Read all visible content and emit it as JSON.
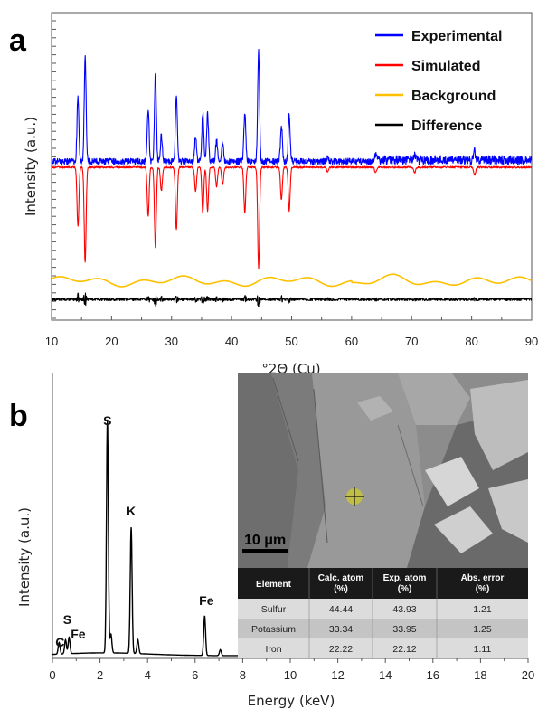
{
  "chart_data": [
    {
      "type": "line",
      "panel": "a",
      "xlabel": "°2Θ (Cu)",
      "ylabel": "Intensity (a.u.)",
      "xlim": [
        10,
        90
      ],
      "xticks": [
        "10",
        "20",
        "30",
        "40",
        "50",
        "60",
        "70",
        "80",
        "90"
      ],
      "legend_position": "top-right",
      "series": [
        {
          "name": "Experimental",
          "color": "#0000ff"
        },
        {
          "name": "Simulated",
          "color": "#ff0000"
        },
        {
          "name": "Background",
          "color": "#ffc000"
        },
        {
          "name": "Difference",
          "color": "#000000"
        }
      ],
      "peaks": {
        "x": [
          14.4,
          15.6,
          26.1,
          27.3,
          28.3,
          30.8,
          34.0,
          35.2,
          36.0,
          37.5,
          38.5,
          42.2,
          44.5,
          48.3,
          49.6,
          56.0,
          64.0,
          70.5,
          80.5
        ],
        "height": [
          0.55,
          0.88,
          0.45,
          0.74,
          0.22,
          0.58,
          0.22,
          0.42,
          0.4,
          0.18,
          0.16,
          0.42,
          0.93,
          0.3,
          0.4,
          0.04,
          0.05,
          0.05,
          0.07
        ]
      }
    },
    {
      "type": "line",
      "panel": "b",
      "xlabel": "Energy (keV)",
      "ylabel": "Intensity (a.u.)",
      "xlim": [
        0,
        20
      ],
      "xticks": [
        "0",
        "2",
        "4",
        "6",
        "8",
        "10",
        "12",
        "14",
        "16",
        "18",
        "20"
      ],
      "peaks": {
        "x": [
          0.28,
          0.55,
          0.7,
          2.31,
          2.46,
          3.31,
          3.59,
          6.4,
          7.06
        ],
        "height": [
          0.05,
          0.06,
          0.07,
          1.0,
          0.08,
          0.54,
          0.06,
          0.17,
          0.025
        ]
      },
      "annotations": [
        {
          "text": "S",
          "x": 2.31
        },
        {
          "text": "K",
          "x": 3.31
        },
        {
          "text": "Fe",
          "x": 6.4
        },
        {
          "text": "C",
          "x": 0.28
        },
        {
          "text": "S",
          "x": 0.55
        },
        {
          "text": "Fe",
          "x": 0.7
        }
      ],
      "inset": {
        "scale_bar": "10 μm",
        "table": {
          "headers": [
            "Element",
            "Calc. atom (%)",
            "Exp. atom (%)",
            "Abs. error (%)"
          ],
          "rows": [
            [
              "Sulfur",
              "44.44",
              "43.93",
              "1.21"
            ],
            [
              "Potassium",
              "33.34",
              "33.95",
              "1.25"
            ],
            [
              "Iron",
              "22.22",
              "22.12",
              "1.11"
            ]
          ]
        }
      }
    }
  ],
  "panels": {
    "a": "a",
    "b": "b"
  },
  "colors": {
    "table_header": "#1a1a1a",
    "row_odd": "#dcdcdc",
    "row_even": "#c4c4c4",
    "sem_bg": "#8a8a8a"
  }
}
